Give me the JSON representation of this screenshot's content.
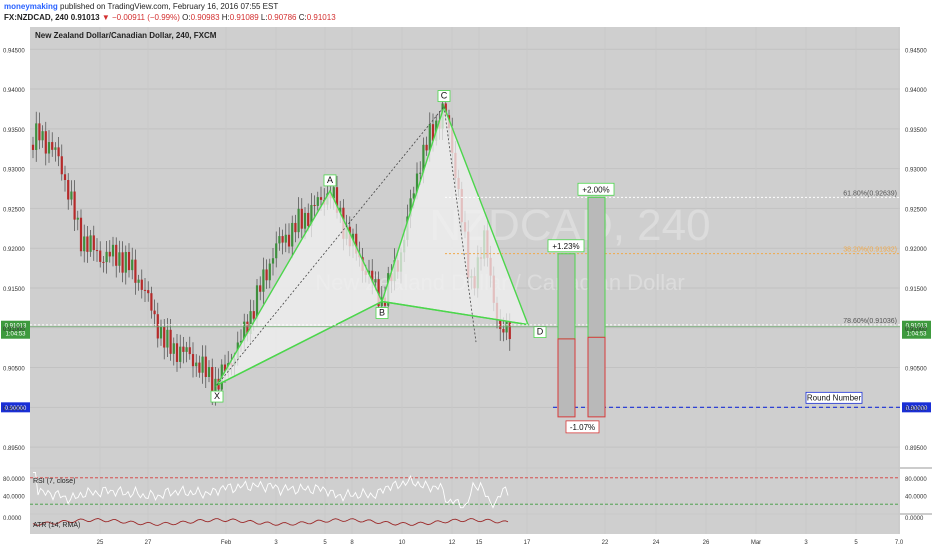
{
  "header": {
    "username": "moneymaking",
    "published": "published on TradingView.com, February 16, 2016 07:55 EST",
    "symbol": "FX:NZDCAD, 240",
    "last": "0.91013",
    "change_arrow": "▼",
    "change": "−0.00911 (−0.99%)",
    "ohlc": {
      "O": "0.90983",
      "H": "0.91089",
      "L": "0.90786",
      "C": "0.91013"
    },
    "o_label": "O:",
    "h_label": "H:",
    "l_label": "L:",
    "c_label": "C:"
  },
  "chart_data": [
    {
      "type": "candlestick",
      "title": "New Zealand Dollar/Canadian Dollar, 240, FXCM",
      "watermark": [
        "NZDCAD, 240",
        "New Zealand Dollar / Canadian Dollar"
      ],
      "y_ticks": [
        "0.94500",
        "0.94000",
        "0.93500",
        "0.93000",
        "0.92500",
        "0.92000",
        "0.91500",
        "0.91000",
        "0.90500",
        "0.90000",
        "0.89500"
      ],
      "ylim": [
        0.8925,
        0.9478
      ],
      "x_ticks": [
        "25",
        "27",
        "Feb",
        "3",
        "5",
        "8",
        "10",
        "12",
        "15",
        "17",
        "22",
        "24",
        "26",
        "Mar",
        "3",
        "5",
        "7.0"
      ],
      "pattern_points": [
        {
          "label": "X",
          "price": 0.9028
        },
        {
          "label": "A",
          "price": 0.9272
        },
        {
          "label": "B",
          "price": 0.9133
        },
        {
          "label": "C",
          "price": 0.9378
        },
        {
          "label": "D",
          "price": 0.9104
        }
      ],
      "levels": [
        {
          "label": "61.80%(0.92639)",
          "price": 0.92639,
          "color": "#ffffff"
        },
        {
          "label": "38.20%(0.91932)",
          "price": 0.91932,
          "color": "#f0a94a"
        },
        {
          "label": "78.60%(0.91036)",
          "price": 0.91036,
          "color": "#ffffff"
        }
      ],
      "round_number": {
        "label": "Round Number",
        "price": 0.9,
        "price_label": "0.90000"
      },
      "current_price": {
        "label": "0.91013",
        "countdown": "1:04:53"
      },
      "targets": [
        {
          "label": "+1.23%",
          "top": 0.9193,
          "entry": 0.9086,
          "stop": 0.8988
        },
        {
          "label": "+2.00%",
          "top": 0.9264,
          "entry": 0.9088,
          "stop": 0.8988
        }
      ],
      "stop_label": "-1.07%"
    },
    {
      "type": "line",
      "title": "RSI (7, close)",
      "y_ticks": [
        "80.0000",
        "40.0000"
      ],
      "ylim": [
        0,
        100
      ],
      "levels": [
        80,
        20
      ]
    },
    {
      "type": "line",
      "title": "ATR (14, RMA)",
      "y_ticks": [
        "0.0000"
      ]
    }
  ]
}
